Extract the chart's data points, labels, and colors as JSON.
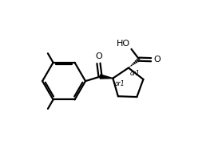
{
  "background_color": "#ffffff",
  "line_color": "#000000",
  "line_width": 1.6,
  "font_size": 6.5,
  "xlim": [
    0,
    10
  ],
  "ylim": [
    0,
    7.5
  ]
}
